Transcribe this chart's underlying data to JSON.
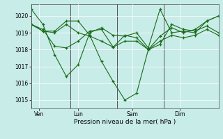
{
  "bg_color": "#c8ece8",
  "grid_color": "#ffffff",
  "line_color": "#1a6b1a",
  "marker_color": "#1a6b1a",
  "vline_color": "#555555",
  "xlabel": "Pression niveau de la mer( hPa )",
  "ylim": [
    1014.5,
    1020.7
  ],
  "yticks": [
    1015,
    1016,
    1017,
    1018,
    1019,
    1020
  ],
  "xtick_labels": [
    "Ven",
    "Lun",
    "Sam",
    "Dim"
  ],
  "xtick_positions": [
    0.5,
    3.0,
    6.5,
    9.5
  ],
  "vline_positions": [
    0.0,
    2.5,
    5.5,
    8.5
  ],
  "xlim": [
    0,
    12
  ],
  "series": [
    [
      1020.4,
      1019.5,
      1017.7,
      1016.4,
      1017.1,
      1019.0,
      1019.3,
      1018.85,
      1018.8,
      1019.0,
      1018.1,
      1020.4,
      1019.0,
      1019.1,
      1019.0,
      1019.7,
      1020.0
    ],
    [
      1019.5,
      1019.2,
      1018.2,
      1018.1,
      1018.5,
      1019.1,
      1019.2,
      1018.15,
      1018.5,
      1018.5,
      1018.0,
      1018.8,
      1019.3,
      1019.0,
      1019.2,
      1019.7,
      1020.0
    ],
    [
      1019.5,
      1019.1,
      1019.0,
      1019.5,
      1019.0,
      1018.8,
      1018.5,
      1018.15,
      1018.85,
      1018.7,
      1018.0,
      1018.3,
      1019.5,
      1019.2,
      1019.1,
      1019.4,
      1019.0
    ],
    [
      1019.5,
      1019.1,
      1019.1,
      1019.7,
      1019.7,
      1018.85,
      1017.3,
      1016.1,
      1015.0,
      1015.4,
      1018.0,
      1018.5,
      1018.85,
      1018.7,
      1018.85,
      1019.2,
      1018.85
    ]
  ],
  "n_points": 17,
  "x_total": 12
}
